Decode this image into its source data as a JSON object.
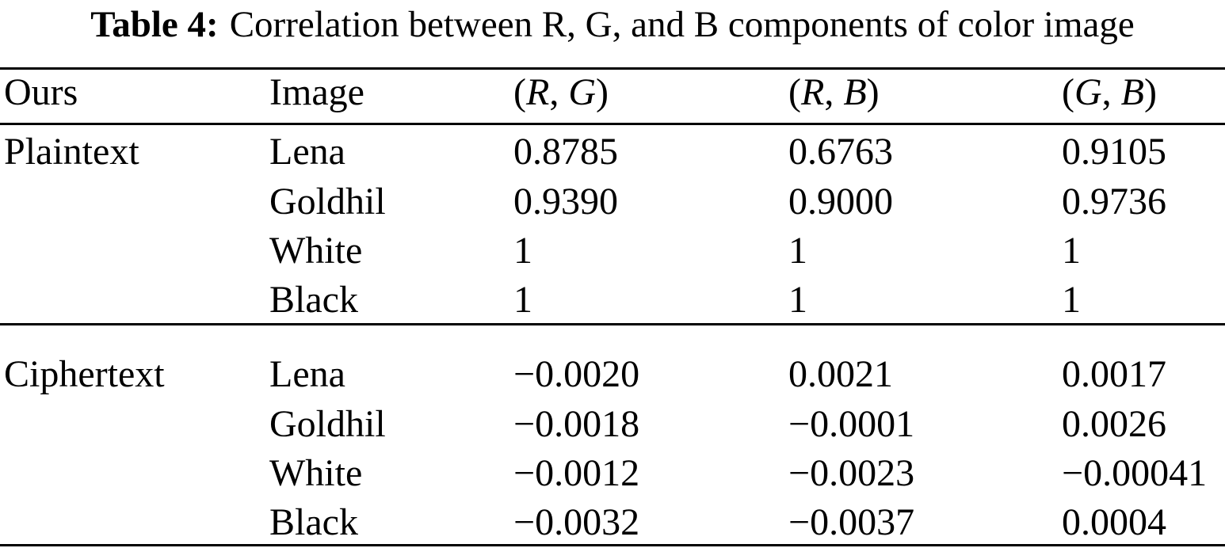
{
  "title": {
    "label": "Table 4:",
    "text": "Correlation between R, G, and B components of color image"
  },
  "table": {
    "headers": {
      "group": "Ours",
      "image": "Image",
      "pairs": [
        {
          "open": "(",
          "first": "R",
          "sep": ", ",
          "second": "G",
          "close": ")"
        },
        {
          "open": "(",
          "first": "R",
          "sep": ", ",
          "second": "B",
          "close": ")"
        },
        {
          "open": "(",
          "first": "G",
          "sep": ", ",
          "second": "B",
          "close": ")"
        }
      ]
    },
    "groups": [
      {
        "label": "Plaintext",
        "rows": [
          {
            "image": "Lena",
            "values": [
              "0.8785",
              "0.6763",
              "0.9105"
            ]
          },
          {
            "image": "Goldhil",
            "values": [
              "0.9390",
              "0.9000",
              "0.9736"
            ]
          },
          {
            "image": "White",
            "values": [
              "1",
              "1",
              "1"
            ]
          },
          {
            "image": "Black",
            "values": [
              "1",
              "1",
              "1"
            ]
          }
        ]
      },
      {
        "label": "Ciphertext",
        "rows": [
          {
            "image": "Lena",
            "values": [
              "−0.0020",
              "0.0021",
              "0.0017"
            ]
          },
          {
            "image": "Goldhil",
            "values": [
              "−0.0018",
              "−0.0001",
              "0.0026"
            ]
          },
          {
            "image": "White",
            "values": [
              "−0.0012",
              "−0.0023",
              "−0.00041"
            ]
          },
          {
            "image": "Black",
            "values": [
              "−0.0032",
              "−0.0037",
              "0.0004"
            ]
          }
        ]
      }
    ]
  }
}
